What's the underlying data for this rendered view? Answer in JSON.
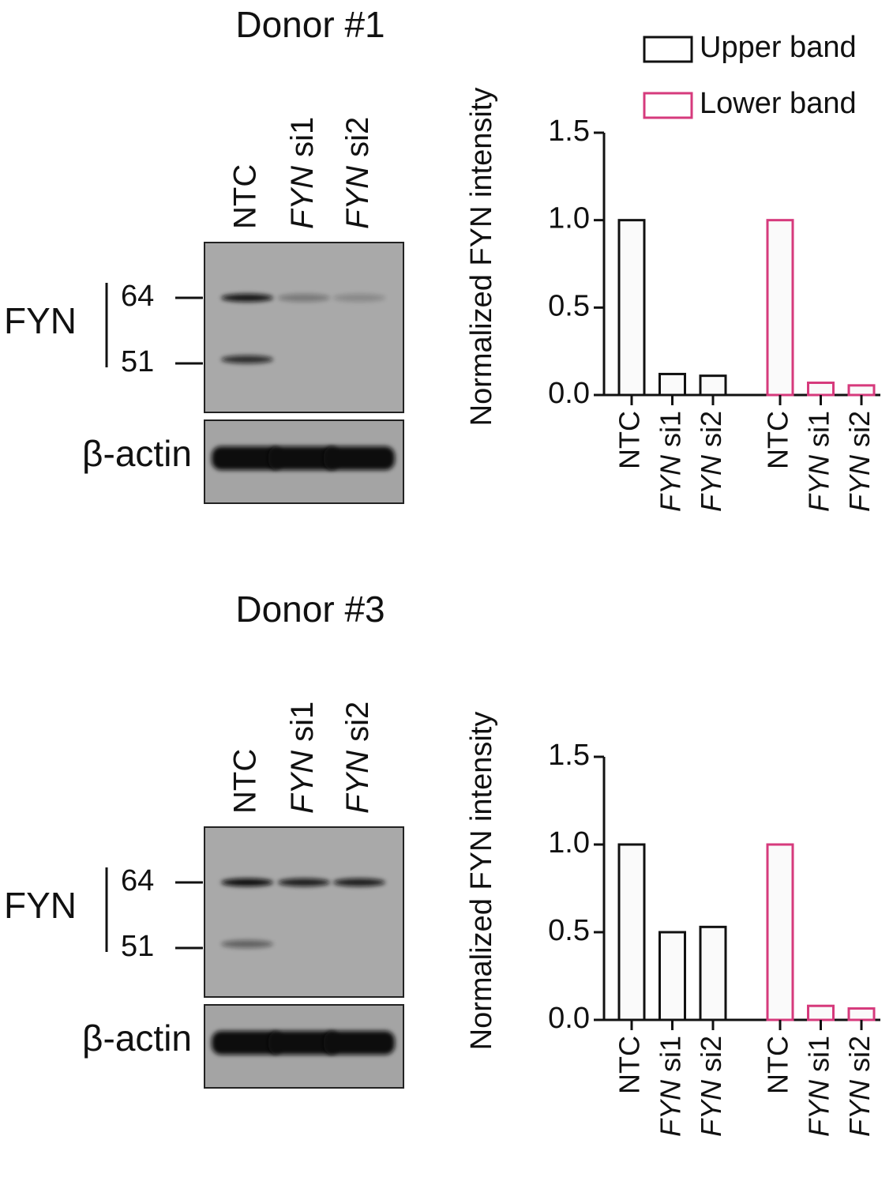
{
  "chart_data": [
    {
      "type": "bar",
      "ylabel": "Normalized FYN intensity",
      "categories": [
        "NTC",
        "FYN si1",
        "FYN si2"
      ],
      "series": [
        {
          "name": "Upper band",
          "color": "#111111",
          "values": [
            1.0,
            0.12,
            0.11
          ]
        },
        {
          "name": "Lower band",
          "color": "#d63a7c",
          "values": [
            1.0,
            0.07,
            0.055
          ]
        }
      ],
      "ylim": [
        0,
        1.5
      ],
      "yticks": [
        {
          "value": 0,
          "label": "0.0"
        },
        {
          "value": 0.5,
          "label": "0.5"
        },
        {
          "value": 1,
          "label": "1.0"
        },
        {
          "value": 1.5,
          "label": "1.5"
        }
      ],
      "legend": "top-right"
    },
    {
      "type": "bar",
      "ylabel": "Normalized FYN intensity",
      "categories": [
        "NTC",
        "FYN si1",
        "FYN si2"
      ],
      "series": [
        {
          "name": "Upper band",
          "color": "#111111",
          "values": [
            1.0,
            0.5,
            0.53
          ]
        },
        {
          "name": "Lower band",
          "color": "#d63a7c",
          "values": [
            1.0,
            0.08,
            0.065
          ]
        }
      ],
      "ylim": [
        0,
        1.5
      ],
      "yticks": [
        {
          "value": 0,
          "label": "0.0"
        },
        {
          "value": 0.5,
          "label": "0.5"
        },
        {
          "value": 1,
          "label": "1.0"
        },
        {
          "value": 1.5,
          "label": "1.5"
        }
      ],
      "legend": null
    }
  ],
  "blots": [
    {
      "title": "Donor #1",
      "lanes": [
        "NTC",
        "FYN si1",
        "FYN si2"
      ],
      "protein": "FYN",
      "markers": [
        64,
        51
      ],
      "loading": "β-actin"
    },
    {
      "title": "Donor #3",
      "lanes": [
        "NTC",
        "FYN si1",
        "FYN si2"
      ],
      "protein": "FYN",
      "markers": [
        64,
        51
      ],
      "loading": "β-actin"
    }
  ]
}
